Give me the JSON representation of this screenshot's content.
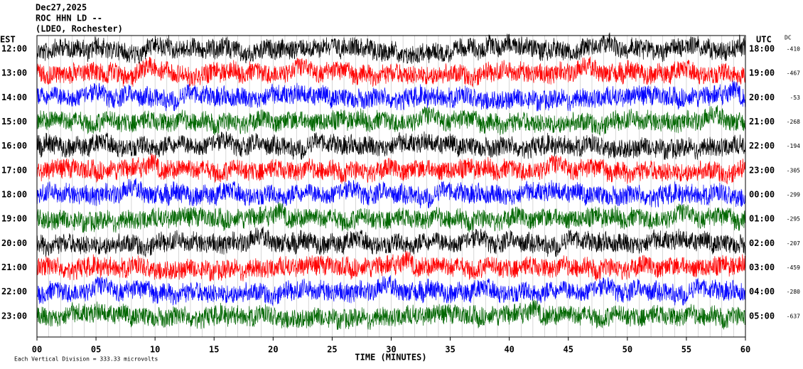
{
  "header": {
    "lines": [
      "Dec27,2025",
      "ROC HHN LD --",
      "(LDEO, Rochester)"
    ]
  },
  "left_axis_title": "EST",
  "right_axis_title": "UTC",
  "dc_title": "DC",
  "rows": [
    {
      "est": "12:00",
      "utc": "18:00",
      "dc": "-410"
    },
    {
      "est": "13:00",
      "utc": "19:00",
      "dc": "-467"
    },
    {
      "est": "14:00",
      "utc": "20:00",
      "dc": "-53"
    },
    {
      "est": "15:00",
      "utc": "21:00",
      "dc": "-268"
    },
    {
      "est": "16:00",
      "utc": "22:00",
      "dc": "-194"
    },
    {
      "est": "17:00",
      "utc": "23:00",
      "dc": "-305"
    },
    {
      "est": "18:00",
      "utc": "00:00",
      "dc": "-299"
    },
    {
      "est": "19:00",
      "utc": "01:00",
      "dc": "-295"
    },
    {
      "est": "20:00",
      "utc": "02:00",
      "dc": "-207"
    },
    {
      "est": "21:00",
      "utc": "03:00",
      "dc": "-459"
    },
    {
      "est": "22:00",
      "utc": "04:00",
      "dc": "-280"
    },
    {
      "est": "23:00",
      "utc": "05:00",
      "dc": "-637"
    }
  ],
  "x_ticks": [
    "00",
    "05",
    "10",
    "15",
    "20",
    "25",
    "30",
    "35",
    "40",
    "45",
    "50",
    "55",
    "60"
  ],
  "x_label": "TIME (MINUTES)",
  "footer": "Each Vertical Division =  333.33 microvolts"
}
